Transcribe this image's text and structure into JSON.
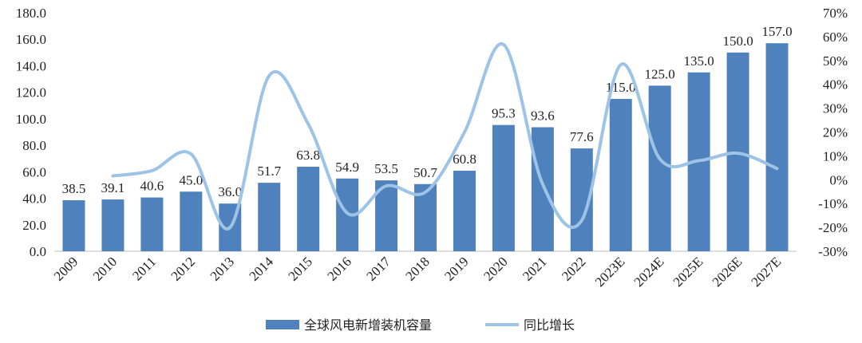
{
  "chart_data": {
    "type": "bar",
    "categories": [
      "2009",
      "2010",
      "2011",
      "2012",
      "2013",
      "2014",
      "2015",
      "2016",
      "2017",
      "2018",
      "2019",
      "2020",
      "2021",
      "2022",
      "2023E",
      "2024E",
      "2025E",
      "2026E",
      "2027E"
    ],
    "series": [
      {
        "name": "全球风电新增装机容量",
        "type": "bar",
        "axis": "left",
        "color": "#4F81BD",
        "values": [
          38.5,
          39.1,
          40.6,
          45.0,
          36.0,
          51.7,
          63.8,
          54.9,
          53.5,
          50.7,
          60.8,
          95.3,
          93.6,
          77.6,
          115.0,
          125.0,
          135.0,
          150.0,
          157.0
        ],
        "labels": [
          "38.5",
          "39.1",
          "40.6",
          "45.0",
          "36.0",
          "51.7",
          "63.8",
          "54.9",
          "53.5",
          "50.7",
          "60.8",
          "95.3",
          "93.6",
          "77.6",
          "115.0",
          "125.0",
          "135.0",
          "150.0",
          "157.0"
        ]
      },
      {
        "name": "同比增长",
        "type": "line",
        "axis": "right",
        "color": "#9DC3E6",
        "values": [
          null,
          1.6,
          3.8,
          10.8,
          -20.0,
          43.6,
          23.4,
          -14.0,
          -2.6,
          -5.2,
          19.9,
          56.7,
          -1.8,
          -17.1,
          48.2,
          8.7,
          8.0,
          11.1,
          4.7
        ]
      }
    ],
    "y_left": {
      "min": 0,
      "max": 180,
      "ticks": [
        "0.0",
        "20.0",
        "40.0",
        "60.0",
        "80.0",
        "100.0",
        "120.0",
        "140.0",
        "160.0",
        "180.0"
      ]
    },
    "y_right": {
      "min": -30,
      "max": 70,
      "ticks": [
        "-30%",
        "-20%",
        "-10%",
        "0%",
        "10%",
        "20%",
        "30%",
        "40%",
        "50%",
        "60%",
        "70%"
      ]
    },
    "legend_position": "bottom",
    "grid": false
  }
}
